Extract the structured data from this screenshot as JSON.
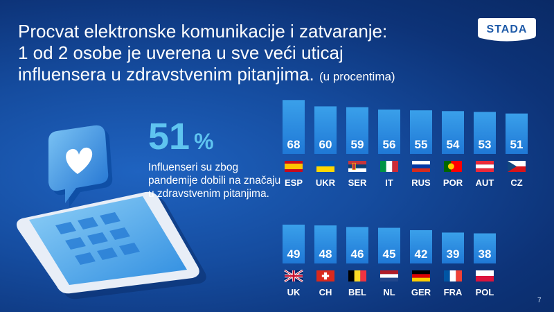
{
  "slide": {
    "title_lines": [
      "Procvat elektronske komunikacije i zatvaranje:",
      "1 od 2 osobe je uverena u sve veći uticaj",
      "influensera u zdravstvenim pitanjima."
    ],
    "title_suffix": "(u procentima)",
    "logo_text": "STADA",
    "highlight_value": "51",
    "highlight_unit": "%",
    "highlight_text": "Influenseri su zbog pandemije dobili na značaju u zdravstvenim pitanjima.",
    "page_number": "7"
  },
  "colors": {
    "bar_top": "#3aa0ea",
    "bar_bottom": "#1f78d6",
    "highlight": "#5fc4f0"
  },
  "chart_data": {
    "type": "bar",
    "unit": "%",
    "rows": [
      {
        "categories": [
          "ESP",
          "UKR",
          "SER",
          "IT",
          "RUS",
          "POR",
          "AUT",
          "CZ"
        ],
        "values": [
          68,
          60,
          59,
          56,
          55,
          54,
          53,
          51
        ],
        "flags": [
          "spain-flag-icon",
          "ukraine-flag-icon",
          "serbia-flag-icon",
          "italy-flag-icon",
          "russia-flag-icon",
          "portugal-flag-icon",
          "austria-flag-icon",
          "czech-flag-icon"
        ]
      },
      {
        "categories": [
          "UK",
          "CH",
          "BEL",
          "NL",
          "GER",
          "FRA",
          "POL"
        ],
        "values": [
          49,
          48,
          46,
          45,
          42,
          39,
          38
        ],
        "flags": [
          "uk-flag-icon",
          "switzerland-flag-icon",
          "belgium-flag-icon",
          "netherlands-flag-icon",
          "germany-flag-icon",
          "france-flag-icon",
          "poland-flag-icon"
        ]
      }
    ],
    "ylim": [
      0,
      70
    ]
  }
}
